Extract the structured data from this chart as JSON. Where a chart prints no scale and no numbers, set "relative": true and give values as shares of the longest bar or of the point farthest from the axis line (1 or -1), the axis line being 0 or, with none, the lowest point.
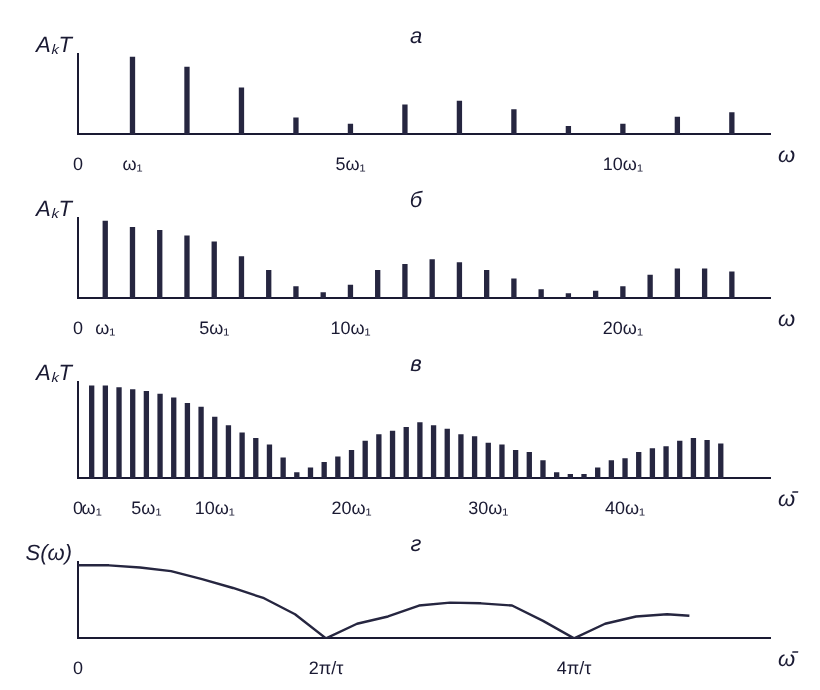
{
  "chart_data": [
    {
      "type": "bar",
      "title": "а",
      "ylabel": "AₖT",
      "xlabel": "ω",
      "relative": true,
      "color": "#262640",
      "xlim": [
        0,
        12.7
      ],
      "xticks": [
        {
          "value": 0,
          "label": "0"
        },
        {
          "value": 1,
          "label": "ω₁"
        },
        {
          "value": 5,
          "label": "5ω₁"
        },
        {
          "value": 10,
          "label": "10ω₁"
        }
      ],
      "x": [
        1,
        2,
        3,
        4,
        5,
        6,
        7,
        8,
        9,
        10,
        11,
        12
      ],
      "values": [
        1,
        0.87,
        0.6,
        0.21,
        0.13,
        0.38,
        0.43,
        0.32,
        0.1,
        0.13,
        0.22,
        0.28
      ]
    },
    {
      "type": "bar",
      "title": "б",
      "ylabel": "AₖT",
      "xlabel": "ω",
      "relative": true,
      "color": "#262640",
      "xlim": [
        0,
        25.4
      ],
      "xticks": [
        {
          "value": 0,
          "label": "0"
        },
        {
          "value": 1,
          "label": "ω₁"
        },
        {
          "value": 5,
          "label": "5ω₁"
        },
        {
          "value": 10,
          "label": "10ω₁"
        },
        {
          "value": 20,
          "label": "20ω₁"
        }
      ],
      "x": [
        1,
        2,
        3,
        4,
        5,
        6,
        7,
        8,
        9,
        10,
        11,
        12,
        13,
        14,
        15,
        16,
        17,
        18,
        19,
        20,
        21,
        22,
        23,
        24
      ],
      "values": [
        1,
        0.92,
        0.88,
        0.81,
        0.73,
        0.54,
        0.36,
        0.15,
        0.07,
        0.17,
        0.36,
        0.44,
        0.5,
        0.46,
        0.36,
        0.25,
        0.11,
        0.06,
        0.09,
        0.15,
        0.3,
        0.38,
        0.38,
        0.34
      ]
    },
    {
      "type": "bar",
      "title": "в",
      "ylabel": "AₖT",
      "xlabel": "ω̄",
      "relative": true,
      "color": "#262640",
      "xlim": [
        0,
        50.6
      ],
      "xticks": [
        {
          "value": 0,
          "label": "0"
        },
        {
          "value": 1,
          "label": "ω₁"
        },
        {
          "value": 5,
          "label": "5ω₁"
        },
        {
          "value": 10,
          "label": "10ω₁"
        },
        {
          "value": 20,
          "label": "20ω₁"
        },
        {
          "value": 30,
          "label": "30ω₁"
        },
        {
          "value": 40,
          "label": "40ω₁"
        }
      ],
      "x": [
        1,
        2,
        3,
        4,
        5,
        6,
        7,
        8,
        9,
        10,
        11,
        12,
        13,
        14,
        15,
        16,
        17,
        18,
        19,
        20,
        21,
        22,
        23,
        24,
        25,
        26,
        27,
        28,
        29,
        30,
        31,
        32,
        33,
        34,
        35,
        36,
        37,
        38,
        39,
        40,
        41,
        42,
        43,
        44,
        45,
        46,
        47
      ],
      "values": [
        1,
        1,
        0.98,
        0.96,
        0.94,
        0.91,
        0.87,
        0.81,
        0.77,
        0.66,
        0.57,
        0.49,
        0.43,
        0.36,
        0.22,
        0.06,
        0.11,
        0.17,
        0.23,
        0.3,
        0.4,
        0.47,
        0.51,
        0.55,
        0.6,
        0.57,
        0.53,
        0.47,
        0.45,
        0.38,
        0.36,
        0.3,
        0.28,
        0.19,
        0.06,
        0.04,
        0.04,
        0.11,
        0.19,
        0.21,
        0.28,
        0.32,
        0.34,
        0.4,
        0.43,
        0.41,
        0.37
      ]
    },
    {
      "type": "line",
      "title": "г",
      "ylabel": "S(ω)",
      "xlabel": "ω̄",
      "relative": true,
      "color": "#262640",
      "xlim": [
        0,
        5.58
      ],
      "xticks": [
        {
          "value": 0,
          "label": "0"
        },
        {
          "value": 2,
          "label": "2π/τ"
        },
        {
          "value": 4,
          "label": "4π/τ"
        }
      ],
      "x": [
        0,
        0.25,
        0.5,
        0.75,
        1,
        1.25,
        1.5,
        1.75,
        2,
        2.25,
        2.5,
        2.75,
        3,
        3.25,
        3.5,
        3.75,
        4,
        4.25,
        4.5,
        4.75,
        4.93
      ],
      "values": [
        1,
        1,
        0.97,
        0.92,
        0.81,
        0.69,
        0.55,
        0.33,
        0,
        0.2,
        0.3,
        0.45,
        0.49,
        0.48,
        0.45,
        0.24,
        0,
        0.2,
        0.3,
        0.33,
        0.31
      ]
    }
  ]
}
